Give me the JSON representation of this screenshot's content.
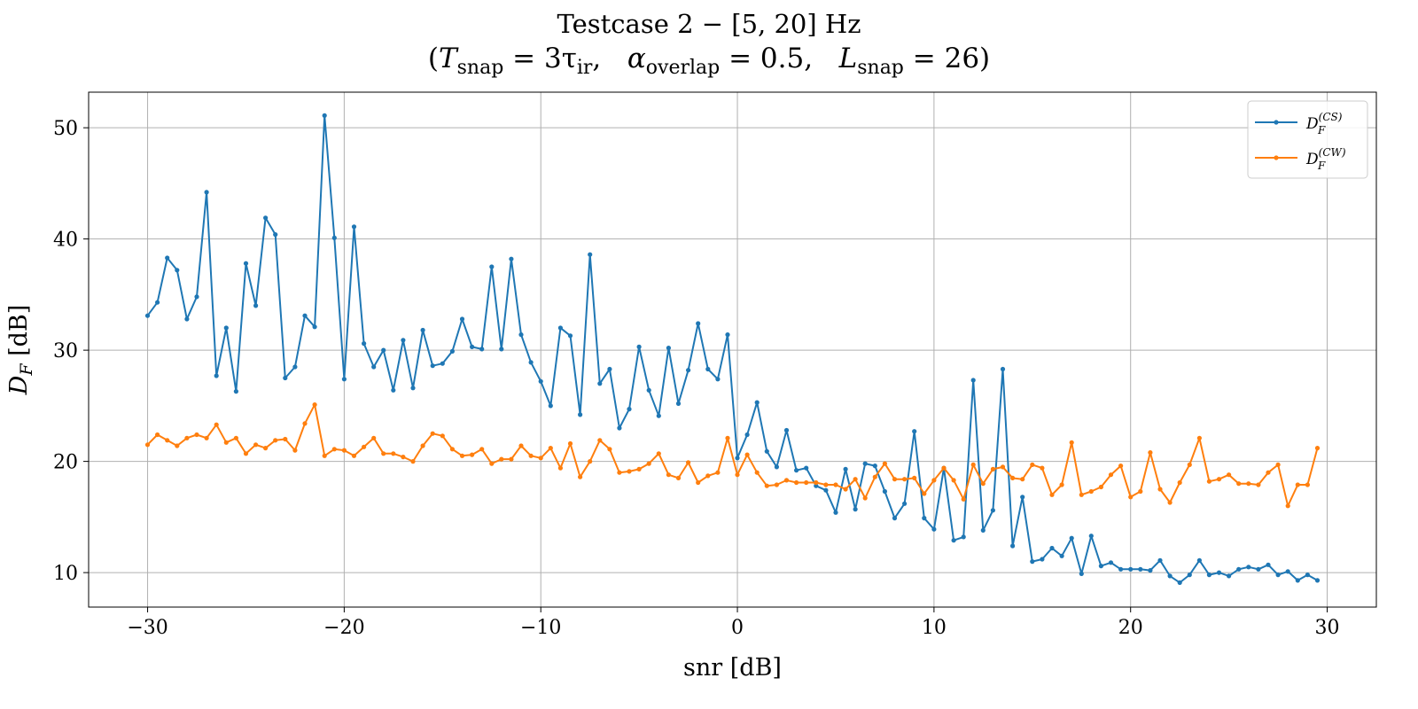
{
  "chart_data": {
    "type": "line",
    "title": "Testcase 2 − [5, 20] Hz",
    "subtitle": {
      "t_symbol": "T",
      "t_sub": "snap",
      "t_value": "= 3τ",
      "t_value_sub": "ir",
      "alpha_symbol": "α",
      "alpha_sub": "overlap",
      "alpha_value": "= 0.5,",
      "l_symbol": "L",
      "l_sub": "snap",
      "l_value": "= 26"
    },
    "xlabel": "snr [dB]",
    "ylabel": "D_F [dB]",
    "xlim": [
      -33,
      32.5
    ],
    "ylim": [
      6.9,
      53.2
    ],
    "xticks": [
      -30,
      -20,
      -10,
      0,
      10,
      20,
      30
    ],
    "xtick_labels": [
      "−30",
      "−20",
      "−10",
      "0",
      "10",
      "20",
      "30"
    ],
    "yticks": [
      10,
      20,
      30,
      40,
      50
    ],
    "ytick_labels": [
      "10",
      "20",
      "30",
      "40",
      "50"
    ],
    "grid": true,
    "legend_position": "top-right",
    "x": [
      -30,
      -29.5,
      -29,
      -28.5,
      -28,
      -27.5,
      -27,
      -26.5,
      -26,
      -25.5,
      -25,
      -24.5,
      -24,
      -23.5,
      -23,
      -22.5,
      -22,
      -21.5,
      -21,
      -20.5,
      -20,
      -19.5,
      -19,
      -18.5,
      -18,
      -17.5,
      -17,
      -16.5,
      -16,
      -15.5,
      -15,
      -14.5,
      -14,
      -13.5,
      -13,
      -12.5,
      -12,
      -11.5,
      -11,
      -10.5,
      -10,
      -9.5,
      -9,
      -8.5,
      -8,
      -7.5,
      -7,
      -6.5,
      -6,
      -5.5,
      -5,
      -4.5,
      -4,
      -3.5,
      -3,
      -2.5,
      -2,
      -1.5,
      -1,
      -0.5,
      0,
      0.5,
      1,
      1.5,
      2,
      2.5,
      3,
      3.5,
      4,
      4.5,
      5,
      5.5,
      6,
      6.5,
      7,
      7.5,
      8,
      8.5,
      9,
      9.5,
      10,
      10.5,
      11,
      11.5,
      12,
      12.5,
      13,
      13.5,
      14,
      14.5,
      15,
      15.5,
      16,
      16.5,
      17,
      17.5,
      18,
      18.5,
      19,
      19.5,
      20,
      20.5,
      21,
      21.5,
      22,
      22.5,
      23,
      23.5,
      24,
      24.5,
      25,
      25.5,
      26,
      26.5,
      27,
      27.5,
      28,
      28.5,
      29,
      29.5
    ],
    "series": [
      {
        "name_base": "D",
        "name_sub": "F",
        "name_sup": "(CS)",
        "color": "#1f77b4",
        "values": [
          33.1,
          34.3,
          38.3,
          37.2,
          32.8,
          34.8,
          44.2,
          27.7,
          32,
          26.3,
          37.8,
          34,
          41.9,
          40.4,
          27.5,
          28.5,
          33.1,
          32.1,
          51.1,
          40.1,
          27.4,
          41.1,
          30.6,
          28.5,
          30,
          26.4,
          30.9,
          26.6,
          31.8,
          28.6,
          28.8,
          29.9,
          32.8,
          30.3,
          30.1,
          37.5,
          30.1,
          38.2,
          31.4,
          28.9,
          27.2,
          25,
          32,
          31.3,
          24.2,
          38.6,
          27,
          28.3,
          23,
          24.7,
          30.3,
          26.4,
          24.1,
          30.2,
          25.2,
          28.2,
          32.4,
          28.3,
          27.4,
          31.4,
          20.3,
          22.4,
          25.3,
          20.9,
          19.5,
          22.8,
          19.2,
          19.4,
          17.8,
          17.4,
          15.4,
          19.3,
          15.7,
          19.8,
          19.6,
          17.3,
          14.9,
          16.2,
          22.7,
          14.9,
          13.9,
          19.4,
          12.9,
          13.2,
          27.3,
          13.8,
          15.6,
          28.3,
          12.4,
          16.8,
          11,
          11.2,
          12.2,
          11.5,
          13.1,
          9.9,
          13.3,
          10.6,
          10.9,
          10.3,
          10.3,
          10.3,
          10.2,
          11.1,
          9.7,
          9.1,
          9.8,
          11.1,
          9.8,
          10,
          9.7,
          10.3,
          10.5,
          10.3,
          10.7,
          9.8,
          10.1,
          9.3,
          9.8,
          9.3
        ]
      },
      {
        "name_base": "D",
        "name_sub": "F",
        "name_sup": "(CW)",
        "color": "#ff7f0e",
        "values": [
          21.5,
          22.4,
          21.9,
          21.4,
          22.1,
          22.4,
          22.1,
          23.3,
          21.7,
          22.1,
          20.7,
          21.5,
          21.2,
          21.9,
          22,
          21,
          23.4,
          25.1,
          20.5,
          21.1,
          21,
          20.5,
          21.3,
          22.1,
          20.7,
          20.7,
          20.4,
          20,
          21.4,
          22.5,
          22.3,
          21.1,
          20.5,
          20.6,
          21.1,
          19.8,
          20.2,
          20.2,
          21.4,
          20.5,
          20.3,
          21.2,
          19.4,
          21.6,
          18.6,
          20,
          21.9,
          21.1,
          19,
          19.1,
          19.3,
          19.8,
          20.7,
          18.8,
          18.5,
          19.9,
          18.1,
          18.7,
          19,
          22.1,
          18.8,
          20.6,
          19,
          17.8,
          17.9,
          18.3,
          18.1,
          18.1,
          18.1,
          17.9,
          17.9,
          17.5,
          18.4,
          16.7,
          18.6,
          19.8,
          18.4,
          18.4,
          18.5,
          17.1,
          18.3,
          19.4,
          18.3,
          16.6,
          19.7,
          18,
          19.3,
          19.5,
          18.5,
          18.4,
          19.7,
          19.4,
          17,
          17.9,
          21.7,
          17,
          17.3,
          17.7,
          18.8,
          19.6,
          16.8,
          17.3,
          20.8,
          17.5,
          16.3,
          18.1,
          19.7,
          22.1,
          18.2,
          18.4,
          18.8,
          18,
          18,
          17.9,
          19,
          19.7,
          16,
          17.9,
          17.9,
          21.2
        ]
      }
    ]
  }
}
